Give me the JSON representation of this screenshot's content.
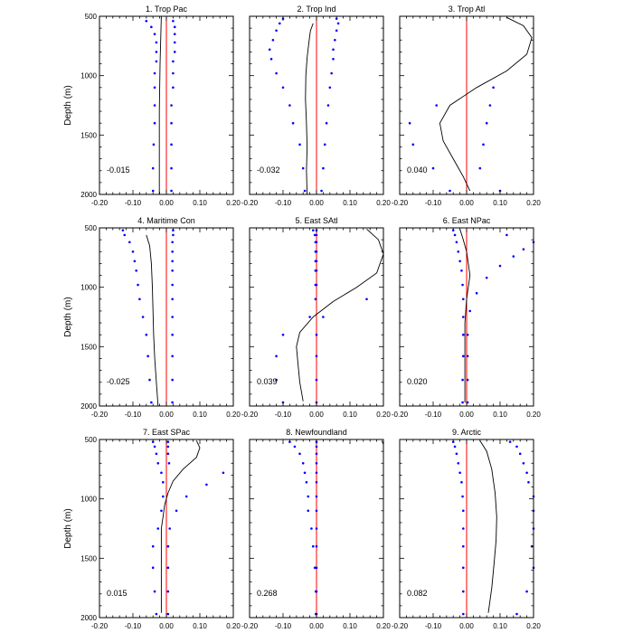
{
  "colors": {
    "zero_line": "#ff0000",
    "dots": "#0000ff",
    "curve": "#000000",
    "axes": "#000000"
  },
  "y_axis": {
    "label": "Depth (m)",
    "ticks": [
      500,
      1000,
      1500,
      2000
    ],
    "tick_labels": [
      "500",
      "1000",
      "1500",
      "2000"
    ],
    "range": [
      500,
      2000
    ]
  },
  "x_axis": {
    "ticks": [
      -0.2,
      -0.1,
      0.0,
      0.1,
      0.2
    ],
    "tick_labels": [
      "-0.20",
      "-0.10",
      "0.00",
      "0.10",
      "0.20"
    ],
    "range": [
      -0.2,
      0.2
    ]
  },
  "chart_data": [
    {
      "type": "line",
      "title": "1. Trop Pac",
      "value_label": "-0.015",
      "curve": [
        [
          -0.015,
          500
        ],
        [
          -0.017,
          700
        ],
        [
          -0.019,
          900
        ],
        [
          -0.02,
          1100
        ],
        [
          -0.021,
          1300
        ],
        [
          -0.021,
          1500
        ],
        [
          -0.021,
          1700
        ],
        [
          -0.021,
          1900
        ],
        [
          -0.021,
          2000
        ]
      ],
      "dots_left": [
        [
          -0.06,
          540
        ],
        [
          -0.045,
          590
        ],
        [
          -0.035,
          650
        ],
        [
          -0.03,
          720
        ],
        [
          -0.03,
          800
        ],
        [
          -0.03,
          880
        ],
        [
          -0.035,
          980
        ],
        [
          -0.035,
          1100
        ],
        [
          -0.035,
          1250
        ],
        [
          -0.035,
          1400
        ],
        [
          -0.038,
          1580
        ],
        [
          -0.04,
          1780
        ],
        [
          -0.04,
          1970
        ]
      ],
      "dots_right": [
        [
          0.02,
          540
        ],
        [
          0.025,
          590
        ],
        [
          0.025,
          650
        ],
        [
          0.025,
          720
        ],
        [
          0.025,
          800
        ],
        [
          0.02,
          880
        ],
        [
          0.02,
          980
        ],
        [
          0.02,
          1100
        ],
        [
          0.015,
          1250
        ],
        [
          0.015,
          1400
        ],
        [
          0.015,
          1580
        ],
        [
          0.015,
          1780
        ],
        [
          0.015,
          1970
        ]
      ]
    },
    {
      "type": "line",
      "title": "2. Trop Ind",
      "value_label": "-0.032",
      "curve": [
        [
          -0.01,
          560
        ],
        [
          -0.018,
          620
        ],
        [
          -0.022,
          700
        ],
        [
          -0.028,
          850
        ],
        [
          -0.032,
          1000
        ],
        [
          -0.033,
          1200
        ],
        [
          -0.03,
          1400
        ],
        [
          -0.028,
          1600
        ],
        [
          -0.03,
          1800
        ],
        [
          -0.028,
          2000
        ]
      ],
      "dots_left": [
        [
          -0.1,
          520
        ],
        [
          -0.11,
          560
        ],
        [
          -0.12,
          620
        ],
        [
          -0.13,
          700
        ],
        [
          -0.14,
          780
        ],
        [
          -0.135,
          860
        ],
        [
          -0.12,
          980
        ],
        [
          -0.1,
          1100
        ],
        [
          -0.08,
          1250
        ],
        [
          -0.07,
          1400
        ],
        [
          -0.05,
          1580
        ],
        [
          -0.04,
          1780
        ],
        [
          -0.035,
          1970
        ]
      ],
      "dots_right": [
        [
          0.06,
          520
        ],
        [
          0.065,
          560
        ],
        [
          0.06,
          620
        ],
        [
          0.055,
          700
        ],
        [
          0.05,
          780
        ],
        [
          0.05,
          860
        ],
        [
          0.045,
          980
        ],
        [
          0.04,
          1100
        ],
        [
          0.035,
          1250
        ],
        [
          0.03,
          1400
        ],
        [
          0.025,
          1580
        ],
        [
          0.02,
          1780
        ],
        [
          0.015,
          1970
        ]
      ]
    },
    {
      "type": "line",
      "title": "3. Trop Atl",
      "value_label": "0.040",
      "curve": [
        [
          0.12,
          510
        ],
        [
          0.17,
          580
        ],
        [
          0.195,
          680
        ],
        [
          0.18,
          820
        ],
        [
          0.12,
          960
        ],
        [
          0.03,
          1100
        ],
        [
          -0.05,
          1250
        ],
        [
          -0.08,
          1400
        ],
        [
          -0.07,
          1550
        ],
        [
          -0.04,
          1700
        ],
        [
          -0.01,
          1850
        ],
        [
          0.01,
          1970
        ]
      ],
      "dots_left": [
        [
          -0.09,
          1250
        ],
        [
          -0.17,
          1400
        ],
        [
          -0.16,
          1580
        ],
        [
          -0.1,
          1780
        ],
        [
          -0.05,
          1970
        ]
      ],
      "dots_right": [
        [
          0.08,
          1100
        ],
        [
          0.07,
          1250
        ],
        [
          0.06,
          1400
        ],
        [
          0.05,
          1580
        ],
        [
          0.04,
          1780
        ],
        [
          0.1,
          1970
        ]
      ]
    },
    {
      "type": "line",
      "title": "4. Maritime Con",
      "value_label": "-0.025",
      "curve": [
        [
          -0.06,
          560
        ],
        [
          -0.05,
          650
        ],
        [
          -0.045,
          800
        ],
        [
          -0.042,
          1000
        ],
        [
          -0.04,
          1200
        ],
        [
          -0.038,
          1400
        ],
        [
          -0.035,
          1600
        ],
        [
          -0.03,
          1800
        ],
        [
          -0.025,
          2000
        ]
      ],
      "dots_left": [
        [
          -0.13,
          520
        ],
        [
          -0.125,
          560
        ],
        [
          -0.11,
          620
        ],
        [
          -0.1,
          700
        ],
        [
          -0.095,
          780
        ],
        [
          -0.09,
          860
        ],
        [
          -0.085,
          980
        ],
        [
          -0.08,
          1100
        ],
        [
          -0.07,
          1250
        ],
        [
          -0.06,
          1400
        ],
        [
          -0.055,
          1580
        ],
        [
          -0.05,
          1780
        ],
        [
          -0.045,
          1970
        ]
      ],
      "dots_right": [
        [
          0.02,
          520
        ],
        [
          0.02,
          560
        ],
        [
          0.018,
          620
        ],
        [
          0.018,
          700
        ],
        [
          0.018,
          780
        ],
        [
          0.018,
          860
        ],
        [
          0.018,
          980
        ],
        [
          0.018,
          1100
        ],
        [
          0.018,
          1250
        ],
        [
          0.018,
          1400
        ],
        [
          0.018,
          1580
        ],
        [
          0.018,
          1780
        ],
        [
          0.018,
          1970
        ]
      ]
    },
    {
      "type": "line",
      "title": "5. East SAtl",
      "value_label": "0.039",
      "curve": [
        [
          0.15,
          510
        ],
        [
          0.185,
          600
        ],
        [
          0.2,
          720
        ],
        [
          0.18,
          880
        ],
        [
          0.12,
          1000
        ],
        [
          0.05,
          1120
        ],
        [
          -0.01,
          1250
        ],
        [
          -0.05,
          1380
        ],
        [
          -0.06,
          1500
        ],
        [
          -0.055,
          1650
        ],
        [
          -0.05,
          1800
        ],
        [
          -0.04,
          1960
        ]
      ],
      "dots_left": [
        [
          -0.01,
          520
        ],
        [
          -0.005,
          560
        ],
        [
          -0.003,
          620
        ],
        [
          -0.003,
          700
        ],
        [
          -0.003,
          780
        ],
        [
          -0.003,
          860
        ],
        [
          -0.003,
          980
        ],
        [
          -0.003,
          1100
        ],
        [
          -0.02,
          1250
        ],
        [
          -0.1,
          1400
        ],
        [
          -0.12,
          1580
        ],
        [
          -0.12,
          1780
        ],
        [
          -0.1,
          1970
        ]
      ],
      "dots_right": [
        [
          0.0,
          520
        ],
        [
          0.0,
          560
        ],
        [
          0.0,
          620
        ],
        [
          0.0,
          700
        ],
        [
          0.0,
          780
        ],
        [
          0.0,
          860
        ],
        [
          0.0,
          980
        ],
        [
          0.15,
          1100
        ],
        [
          0.02,
          1250
        ],
        [
          0.0,
          1400
        ],
        [
          0.0,
          1580
        ],
        [
          0.0,
          1780
        ],
        [
          0.0,
          1970
        ]
      ]
    },
    {
      "type": "line",
      "title": "6. East NPac",
      "value_label": "0.020",
      "curve": [
        [
          -0.02,
          510
        ],
        [
          -0.01,
          600
        ],
        [
          0.0,
          700
        ],
        [
          0.005,
          800
        ],
        [
          0.01,
          900
        ],
        [
          0.0,
          1100
        ],
        [
          -0.005,
          1300
        ],
        [
          -0.005,
          1500
        ],
        [
          -0.005,
          1700
        ],
        [
          -0.005,
          1850
        ],
        [
          -0.005,
          1970
        ]
      ],
      "dots_left": [
        [
          -0.04,
          520
        ],
        [
          -0.035,
          560
        ],
        [
          -0.03,
          620
        ],
        [
          -0.025,
          700
        ],
        [
          -0.02,
          780
        ],
        [
          -0.015,
          860
        ],
        [
          -0.012,
          980
        ],
        [
          -0.01,
          1100
        ],
        [
          -0.01,
          1250
        ],
        [
          -0.01,
          1400
        ],
        [
          -0.01,
          1580
        ],
        [
          -0.012,
          1780
        ],
        [
          -0.012,
          1970
        ]
      ],
      "dots_right": [
        [
          0.12,
          560
        ],
        [
          0.2,
          620
        ],
        [
          0.17,
          680
        ],
        [
          0.14,
          740
        ],
        [
          0.1,
          820
        ],
        [
          0.06,
          920
        ],
        [
          0.03,
          1050
        ],
        [
          0.01,
          1200
        ],
        [
          0.003,
          1400
        ],
        [
          0.003,
          1580
        ],
        [
          0.003,
          1780
        ],
        [
          0.003,
          1970
        ]
      ]
    },
    {
      "type": "line",
      "title": "7. East SPac",
      "value_label": "0.015",
      "curve": [
        [
          0.09,
          510
        ],
        [
          0.1,
          570
        ],
        [
          0.09,
          650
        ],
        [
          0.05,
          750
        ],
        [
          0.02,
          850
        ],
        [
          0.005,
          950
        ],
        [
          -0.005,
          1050
        ],
        [
          -0.01,
          1150
        ],
        [
          -0.015,
          1250
        ],
        [
          -0.015,
          1400
        ],
        [
          -0.015,
          1600
        ],
        [
          -0.015,
          1800
        ],
        [
          -0.015,
          1960
        ]
      ],
      "dots_left": [
        [
          -0.04,
          520
        ],
        [
          -0.035,
          560
        ],
        [
          -0.03,
          620
        ],
        [
          -0.025,
          700
        ],
        [
          -0.015,
          780
        ],
        [
          -0.01,
          860
        ],
        [
          -0.01,
          980
        ],
        [
          -0.015,
          1100
        ],
        [
          -0.025,
          1250
        ],
        [
          -0.04,
          1400
        ],
        [
          -0.04,
          1580
        ],
        [
          -0.035,
          1780
        ],
        [
          -0.03,
          1970
        ]
      ],
      "dots_right": [
        [
          0.005,
          520
        ],
        [
          0.005,
          560
        ],
        [
          0.005,
          620
        ],
        [
          0.008,
          700
        ],
        [
          0.17,
          780
        ],
        [
          0.12,
          880
        ],
        [
          0.06,
          980
        ],
        [
          0.03,
          1100
        ],
        [
          0.01,
          1250
        ],
        [
          0.005,
          1400
        ],
        [
          0.005,
          1580
        ],
        [
          0.005,
          1780
        ],
        [
          0.005,
          1970
        ]
      ]
    },
    {
      "type": "line",
      "title": "8. Newfoundland",
      "value_label": "0.268",
      "curve": [
        [
          0.195,
          510
        ],
        [
          0.2,
          540
        ]
      ],
      "dots_left": [
        [
          -0.08,
          520
        ],
        [
          -0.065,
          560
        ],
        [
          -0.05,
          620
        ],
        [
          -0.04,
          700
        ],
        [
          -0.035,
          780
        ],
        [
          -0.03,
          860
        ],
        [
          -0.025,
          980
        ],
        [
          -0.025,
          1100
        ],
        [
          -0.015,
          1250
        ],
        [
          -0.01,
          1400
        ],
        [
          -0.005,
          1580
        ],
        [
          -0.002,
          1780
        ],
        [
          -0.002,
          1970
        ]
      ],
      "dots_right": [
        [
          0.0,
          520
        ],
        [
          0.0,
          560
        ],
        [
          0.0,
          620
        ],
        [
          0.0,
          700
        ],
        [
          0.0,
          780
        ],
        [
          0.0,
          860
        ],
        [
          0.0,
          980
        ],
        [
          0.0,
          1100
        ],
        [
          0.0,
          1250
        ],
        [
          0.0,
          1400
        ],
        [
          0.0,
          1580
        ],
        [
          0.0,
          1780
        ],
        [
          0.0,
          1970
        ]
      ]
    },
    {
      "type": "line",
      "title": "9. Arctic",
      "value_label": "0.082",
      "curve": [
        [
          0.04,
          510
        ],
        [
          0.06,
          600
        ],
        [
          0.075,
          750
        ],
        [
          0.085,
          950
        ],
        [
          0.09,
          1150
        ],
        [
          0.088,
          1350
        ],
        [
          0.082,
          1550
        ],
        [
          0.075,
          1750
        ],
        [
          0.065,
          1960
        ]
      ],
      "dots_left": [
        [
          -0.04,
          520
        ],
        [
          -0.035,
          560
        ],
        [
          -0.03,
          620
        ],
        [
          -0.025,
          700
        ],
        [
          -0.02,
          780
        ],
        [
          -0.015,
          860
        ],
        [
          -0.012,
          980
        ],
        [
          -0.01,
          1100
        ],
        [
          -0.01,
          1250
        ],
        [
          -0.01,
          1400
        ],
        [
          -0.01,
          1580
        ],
        [
          -0.01,
          1780
        ],
        [
          -0.01,
          1970
        ]
      ],
      "dots_right": [
        [
          0.13,
          520
        ],
        [
          0.15,
          560
        ],
        [
          0.16,
          620
        ],
        [
          0.17,
          700
        ],
        [
          0.18,
          780
        ],
        [
          0.185,
          860
        ],
        [
          0.2,
          980
        ],
        [
          0.2,
          1100
        ],
        [
          0.2,
          1250
        ],
        [
          0.195,
          1400
        ],
        [
          0.2,
          1580
        ],
        [
          0.18,
          1780
        ],
        [
          0.15,
          1970
        ]
      ]
    }
  ]
}
